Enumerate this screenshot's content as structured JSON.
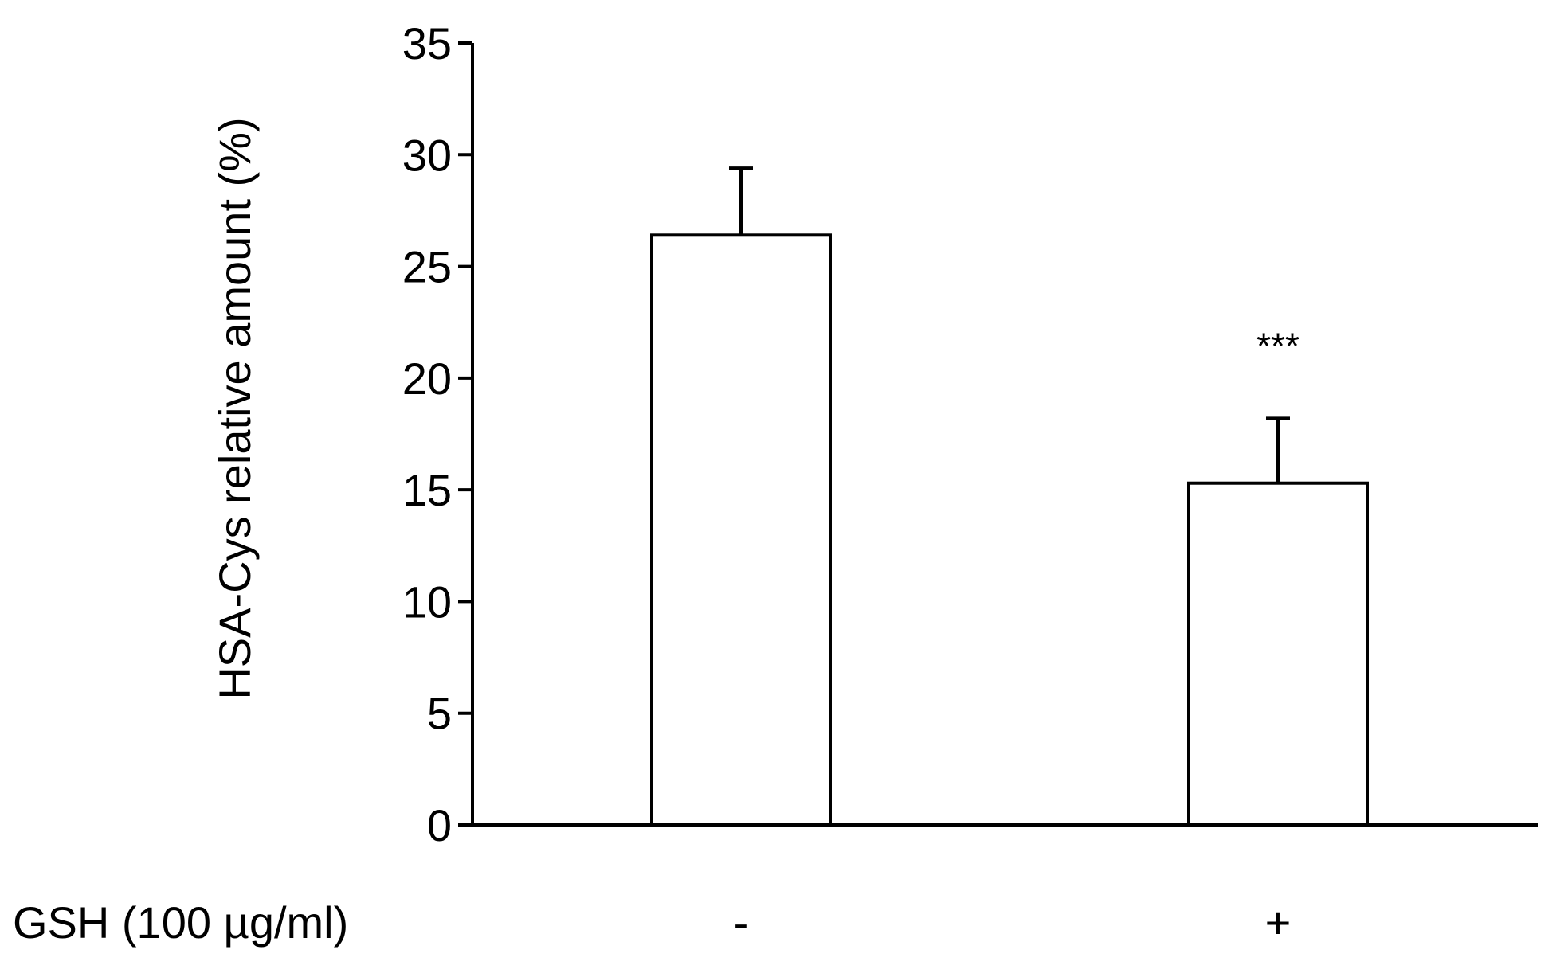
{
  "chart_data": {
    "type": "bar",
    "title": "",
    "ylabel": "HSA-Cys relative amount (%)",
    "xlabel": "GSH (100 µg/ml)",
    "categories": [
      "-",
      "+"
    ],
    "values": [
      26.4,
      15.3
    ],
    "error": [
      3.0,
      2.9
    ],
    "annotations": [
      "",
      "***"
    ],
    "ylim": [
      0,
      35
    ],
    "yticks": [
      0,
      5,
      10,
      15,
      20,
      25,
      30,
      35
    ],
    "yticklabels": [
      "0",
      "5",
      "10",
      "15",
      "20",
      "25",
      "30",
      "35"
    ],
    "grid": false,
    "legend": "none",
    "colors": {
      "bar_fill": "#ffffff",
      "stroke": "#000000"
    }
  }
}
